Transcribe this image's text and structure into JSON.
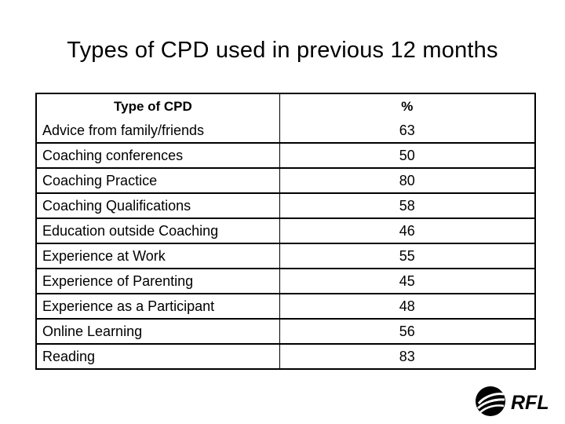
{
  "title": "Types of CPD used in previous 12 months",
  "table": {
    "headers": {
      "type": "Type of CPD",
      "percent": "%"
    },
    "rows": [
      {
        "type": "Advice from family/friends",
        "percent": "63"
      },
      {
        "type": "Coaching conferences",
        "percent": "50"
      },
      {
        "type": "Coaching Practice",
        "percent": "80"
      },
      {
        "type": "Coaching Qualifications",
        "percent": "58"
      },
      {
        "type": "Education outside Coaching",
        "percent": "46"
      },
      {
        "type": "Experience at Work",
        "percent": "55"
      },
      {
        "type": "Experience of Parenting",
        "percent": "45"
      },
      {
        "type": "Experience as a Participant",
        "percent": "48"
      },
      {
        "type": "Online Learning",
        "percent": "56"
      },
      {
        "type": "Reading",
        "percent": "83"
      }
    ]
  },
  "logo": {
    "icon": "rugby-ball-icon",
    "text": "RFL",
    "color": "#000000"
  }
}
